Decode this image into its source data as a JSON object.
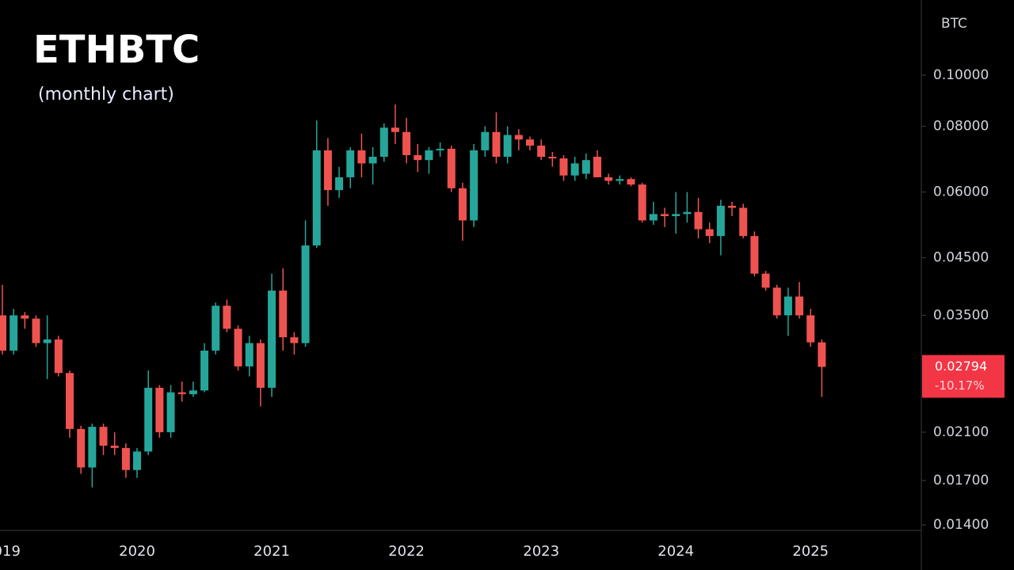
{
  "chart_data": {
    "type": "candlestick",
    "title": "ETHBTC",
    "subtitle": "(monthly chart)",
    "y_axis_label": "BTC",
    "log_y": true,
    "up_color": "#26a69a",
    "down_color": "#ef5350",
    "categories": [
      "2019",
      null,
      null,
      null,
      null,
      null,
      null,
      null,
      null,
      null,
      null,
      null,
      "2020",
      null,
      null,
      null,
      null,
      null,
      null,
      null,
      null,
      null,
      null,
      null,
      "2021",
      null,
      null,
      null,
      null,
      null,
      null,
      null,
      null,
      null,
      null,
      null,
      "2022",
      null,
      null,
      null,
      null,
      null,
      null,
      null,
      null,
      null,
      null,
      null,
      "2023",
      null,
      null,
      null,
      null,
      null,
      null,
      null,
      null,
      null,
      null,
      null,
      "2024",
      null,
      null,
      null,
      null,
      null,
      null,
      null,
      null,
      null,
      null,
      null,
      "2025",
      null
    ],
    "open": [
      0.035,
      0.03,
      0.035,
      0.0345,
      0.031,
      0.0315,
      0.0272,
      0.0213,
      0.018,
      0.0215,
      0.0198,
      0.0196,
      0.0178,
      0.0193,
      0.0255,
      0.021,
      0.025,
      0.0248,
      0.0252,
      0.03,
      0.0365,
      0.033,
      0.028,
      0.031,
      0.0255,
      0.039,
      0.0318,
      0.031,
      0.0475,
      0.072,
      0.0605,
      0.064,
      0.072,
      0.068,
      0.07,
      0.0795,
      0.078,
      0.0705,
      0.069,
      0.072,
      0.0725,
      0.061,
      0.053,
      0.072,
      0.078,
      0.07,
      0.077,
      0.0755,
      0.0735,
      0.07,
      0.0695,
      0.0645,
      0.065,
      0.07,
      0.064,
      0.063,
      0.0635,
      0.062,
      0.053,
      0.0545,
      0.054,
      0.0545,
      0.055,
      0.051,
      0.0495,
      0.0565,
      0.056,
      0.0495,
      0.042,
      0.0395,
      0.035,
      0.038,
      0.035,
      0.0311
    ],
    "high": [
      0.04,
      0.036,
      0.0355,
      0.035,
      0.035,
      0.032,
      0.0275,
      0.0216,
      0.0218,
      0.0218,
      0.021,
      0.02,
      0.0196,
      0.0275,
      0.0258,
      0.0258,
      0.0262,
      0.0262,
      0.031,
      0.037,
      0.0375,
      0.0335,
      0.032,
      0.0315,
      0.042,
      0.043,
      0.0325,
      0.053,
      0.082,
      0.076,
      0.067,
      0.073,
      0.0775,
      0.073,
      0.081,
      0.088,
      0.083,
      0.074,
      0.073,
      0.0745,
      0.0735,
      0.0625,
      0.074,
      0.08,
      0.085,
      0.08,
      0.079,
      0.0765,
      0.0755,
      0.0715,
      0.0705,
      0.07,
      0.071,
      0.072,
      0.065,
      0.0645,
      0.064,
      0.0625,
      0.0575,
      0.056,
      0.06,
      0.06,
      0.0585,
      0.0525,
      0.058,
      0.0575,
      0.057,
      0.0505,
      0.0425,
      0.04,
      0.0395,
      0.0405,
      0.036,
      0.0315
    ],
    "low": [
      0.0295,
      0.0295,
      0.033,
      0.0305,
      0.0265,
      0.0268,
      0.0205,
      0.0175,
      0.0165,
      0.019,
      0.019,
      0.0172,
      0.0172,
      0.019,
      0.0205,
      0.0205,
      0.024,
      0.0245,
      0.025,
      0.0295,
      0.0325,
      0.0275,
      0.0268,
      0.0235,
      0.0245,
      0.03,
      0.0295,
      0.0305,
      0.047,
      0.0565,
      0.0585,
      0.061,
      0.064,
      0.062,
      0.0685,
      0.074,
      0.068,
      0.0655,
      0.065,
      0.07,
      0.06,
      0.0485,
      0.0515,
      0.07,
      0.068,
      0.068,
      0.072,
      0.072,
      0.069,
      0.067,
      0.063,
      0.063,
      0.0635,
      0.064,
      0.062,
      0.062,
      0.0615,
      0.0525,
      0.052,
      0.0515,
      0.05,
      0.0525,
      0.049,
      0.048,
      0.0455,
      0.054,
      0.049,
      0.0415,
      0.039,
      0.0345,
      0.032,
      0.0345,
      0.0305,
      0.0245
    ],
    "close": [
      0.03,
      0.035,
      0.0345,
      0.031,
      0.0315,
      0.0272,
      0.0213,
      0.018,
      0.0215,
      0.0198,
      0.0196,
      0.0178,
      0.0193,
      0.0255,
      0.021,
      0.025,
      0.0248,
      0.0252,
      0.03,
      0.0365,
      0.033,
      0.028,
      0.031,
      0.0255,
      0.039,
      0.0318,
      0.031,
      0.0475,
      0.072,
      0.0605,
      0.064,
      0.072,
      0.068,
      0.07,
      0.0795,
      0.078,
      0.0705,
      0.069,
      0.072,
      0.0725,
      0.061,
      0.053,
      0.072,
      0.078,
      0.07,
      0.077,
      0.0755,
      0.0735,
      0.07,
      0.0695,
      0.0645,
      0.068,
      0.069,
      0.064,
      0.063,
      0.0635,
      0.062,
      0.053,
      0.0545,
      0.054,
      0.0545,
      0.055,
      0.051,
      0.0495,
      0.0565,
      0.056,
      0.0495,
      0.042,
      0.0395,
      0.035,
      0.038,
      0.035,
      0.0311,
      0.02794
    ],
    "ylim": [
      0.01367,
      0.1389
    ],
    "yticks": [
      {
        "value": 0.1,
        "label": "0.10000"
      },
      {
        "value": 0.08,
        "label": "0.08000"
      },
      {
        "value": 0.06,
        "label": "0.06000"
      },
      {
        "value": 0.045,
        "label": "0.04500"
      },
      {
        "value": 0.035,
        "label": "0.03500"
      },
      {
        "value": 0.021,
        "label": "0.02100"
      },
      {
        "value": 0.017,
        "label": "0.01700"
      },
      {
        "value": 0.014,
        "label": "0.01400"
      }
    ],
    "last_price": 0.02794,
    "last_change": "-10.17%",
    "last_color": "#f23645"
  }
}
